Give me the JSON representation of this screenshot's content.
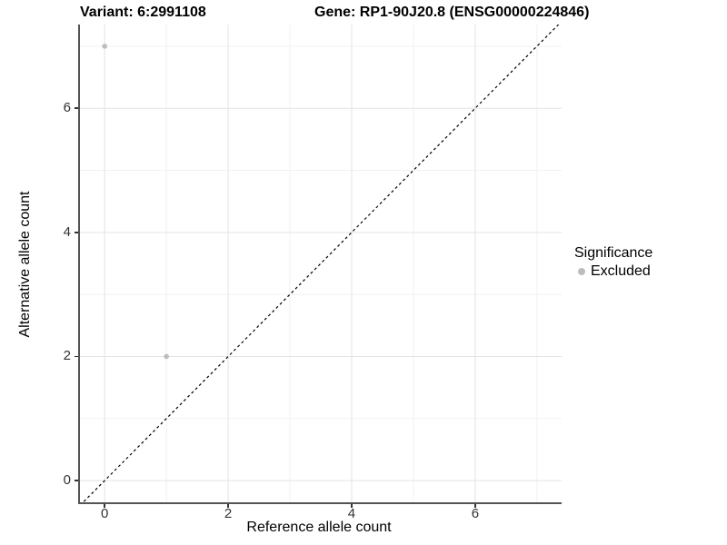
{
  "chart_data": {
    "type": "scatter",
    "title_left": "Variant: 6:2991108",
    "title_right": "Gene: RP1-90J20.8 (ENSG00000224846)",
    "xlabel": "Reference allele count",
    "ylabel": "Alternative allele count",
    "xlim": [
      -0.4,
      7.4
    ],
    "ylim": [
      -0.35,
      7.35
    ],
    "x_ticks": {
      "major": [
        0,
        2,
        4,
        6
      ],
      "minor": [
        1,
        3,
        5,
        7
      ]
    },
    "y_ticks": {
      "major": [
        0,
        2,
        4,
        6
      ],
      "minor": [
        1,
        3,
        5,
        7
      ]
    },
    "grid": "major+minor",
    "series": [
      {
        "name": "Excluded",
        "color": "#bdbdbd",
        "points": [
          [
            0,
            7
          ],
          [
            1,
            2
          ]
        ]
      }
    ],
    "reference_line": {
      "style": "dashed",
      "color": "#000000",
      "slope": 1,
      "intercept": 0,
      "from": [
        -0.4,
        -0.4
      ],
      "to": [
        7.4,
        7.4
      ]
    },
    "legend": {
      "title": "Significance",
      "position": "right",
      "entries": [
        {
          "label": "Excluded",
          "color": "#bdbdbd"
        }
      ]
    }
  },
  "colors": {
    "grid_major": "#e3e3e3",
    "grid_minor": "#f1f1f1",
    "axis_line": "#545454",
    "tick_text": "#333333"
  }
}
